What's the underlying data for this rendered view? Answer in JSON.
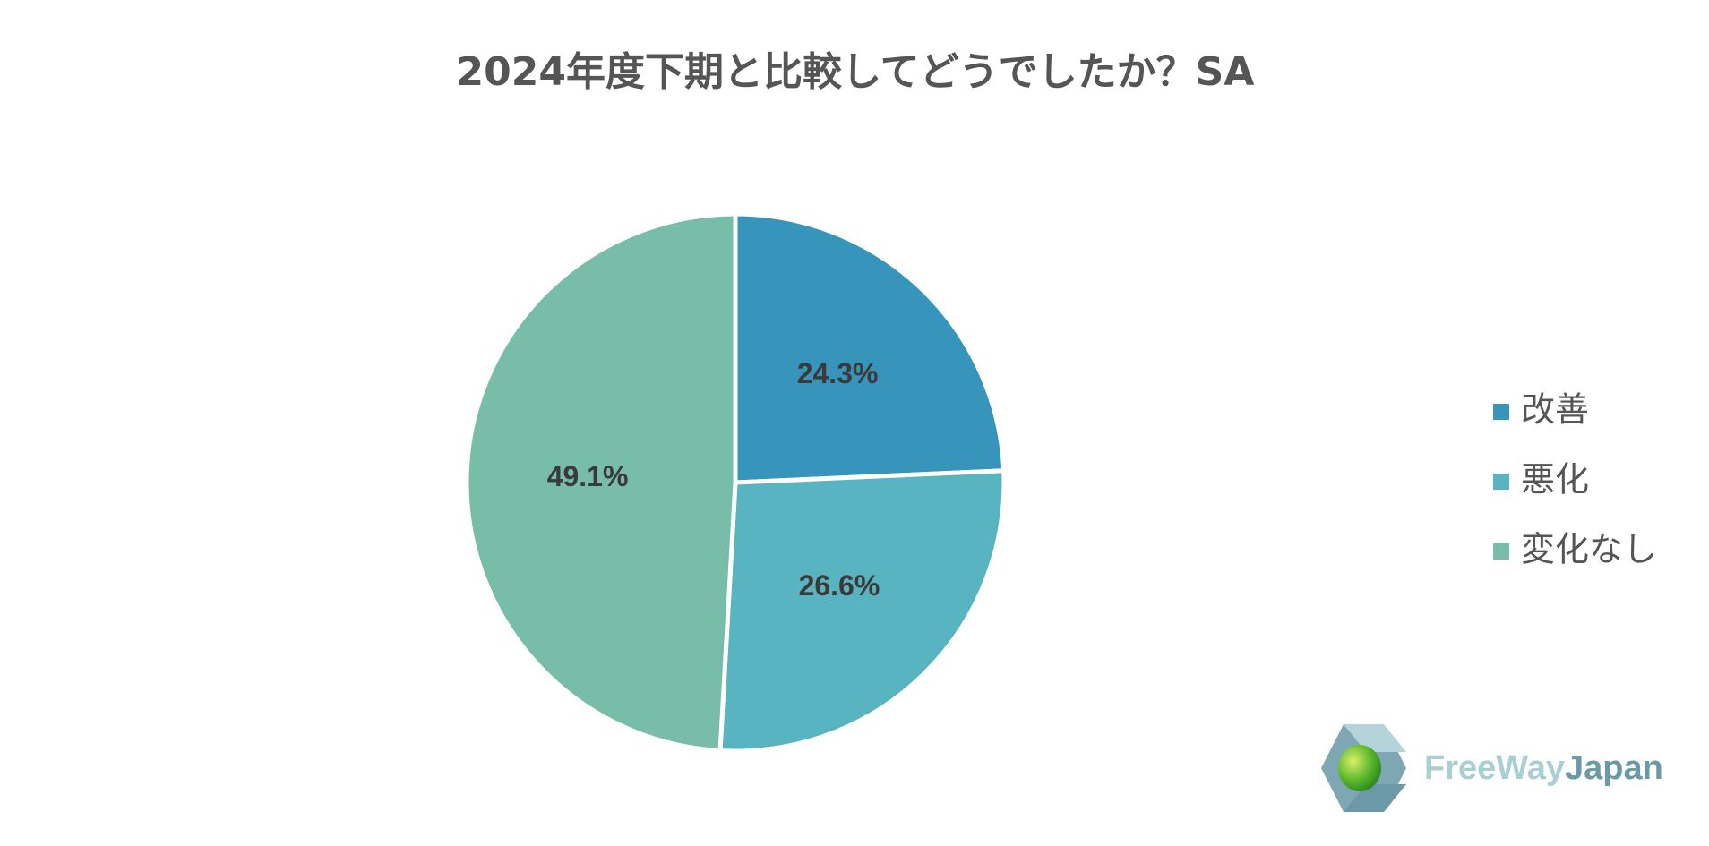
{
  "chart_data": {
    "type": "pie",
    "title": "2024年度下期と比較してどうでしたか？SA",
    "categories": [
      "改善",
      "悪化",
      "変化なし"
    ],
    "values": [
      24.3,
      26.6,
      49.1
    ],
    "value_labels": [
      "24.3%",
      "26.6%",
      "49.1%"
    ],
    "colors": [
      "#3794bb",
      "#58b4c0",
      "#77bda8"
    ],
    "legend": "right"
  },
  "logo": {
    "part1": "FreeWay",
    "part2": "Japan"
  }
}
